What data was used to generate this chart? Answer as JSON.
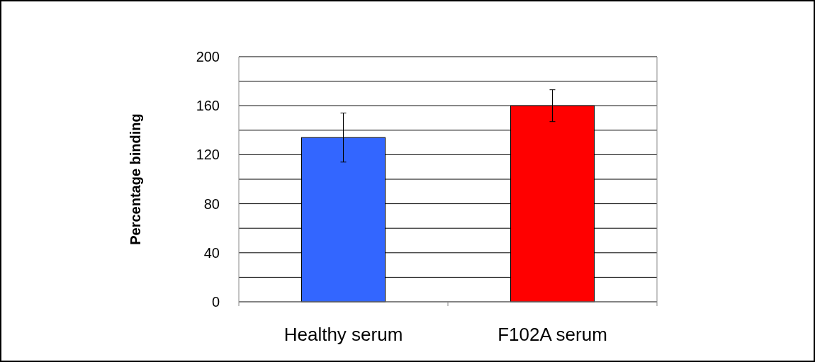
{
  "chart_data": {
    "type": "bar",
    "ylabel": "Percentage binding",
    "categories": [
      "Healthy serum",
      "F102A serum"
    ],
    "values": [
      134,
      160
    ],
    "colors": [
      "#3366ff",
      "#ff0000"
    ],
    "errors": [
      20,
      13
    ],
    "ylim": [
      0,
      200
    ],
    "yticks": [
      0,
      {
        "value": 20,
        "label": null
      },
      40,
      {
        "value": 60,
        "label": null
      },
      80,
      {
        "value": 100,
        "label": null
      },
      120,
      {
        "value": 140,
        "label": null
      },
      160,
      {
        "value": 180,
        "label": null
      },
      200
    ],
    "grid": "y"
  }
}
